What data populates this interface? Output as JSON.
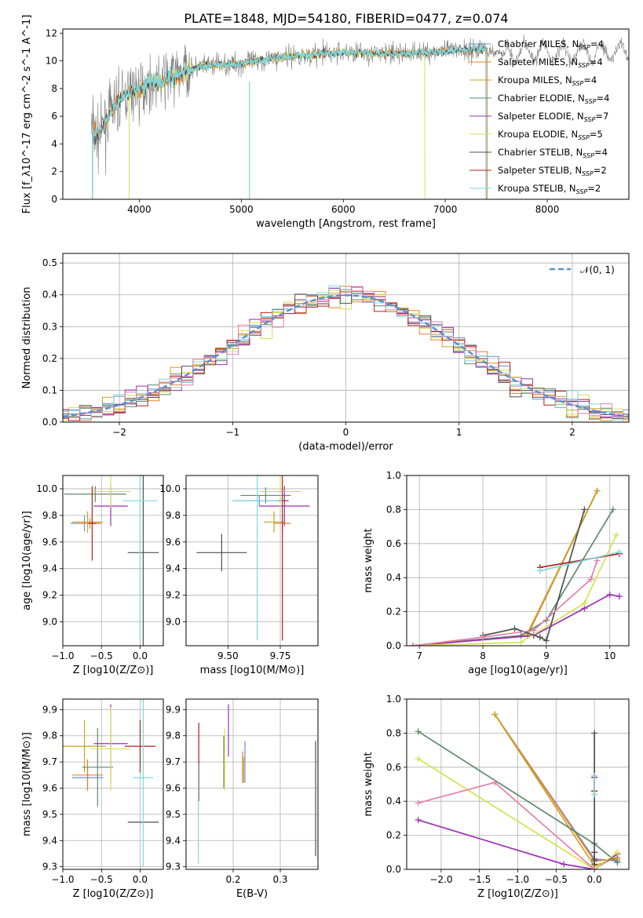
{
  "figure_title": "PLATE=1848, MJD=54180, FIBERID=0477, z=0.074",
  "colors": {
    "Chabrier MILES": "#6b8fd6",
    "Salpeter MILES": "#e8812b",
    "Kroupa MILES": "#c9a227",
    "Chabrier ELODIE": "#5f8a6a",
    "Salpeter ELODIE": "#9b30b5",
    "Kroupa ELODIE": "#d6e24f",
    "Chabrier STELIB": "#4f4f4f",
    "Salpeter STELIB": "#b32020",
    "Kroupa STELIB": "#7fd8dc",
    "data": "#7f7f7f",
    "gaussian": "#5b8fd4"
  },
  "chart_data": [
    {
      "id": "spectrum",
      "type": "line",
      "title": "PLATE=1848, MJD=54180, FIBERID=0477, z=0.074",
      "xlabel": "wavelength [Angstrom, rest frame]",
      "ylabel": "Flux [f_λ10^-17 erg cm^-2 s^-1 A^-1]",
      "xlim": [
        3250,
        8800
      ],
      "ylim": [
        0,
        12.3
      ],
      "xticks": [
        "4000",
        "5000",
        "6000",
        "7000",
        "8000"
      ],
      "yticks": [
        "0",
        "2",
        "4",
        "6",
        "8",
        "10",
        "12"
      ],
      "legend": [
        "Chabrier MILES, N_SSP=4",
        "Salpeter MILES, N_SSP=4",
        "Kroupa MILES, N_SSP=4",
        "Chabrier ELODIE, N_SSP=4",
        "Salpeter ELODIE, N_SSP=7",
        "Kroupa ELODIE, N_SSP=5",
        "Chabrier STELIB, N_SSP=4",
        "Salpeter STELIB, N_SSP=2",
        "Kroupa STELIB, N_SSP=2"
      ],
      "legend_loc": "lower right",
      "continuum": {
        "x": [
          3530,
          3600,
          3700,
          3800,
          3900,
          4000,
          4100,
          4200,
          4300,
          4400,
          4500,
          4700,
          5000,
          5300,
          5600,
          6000,
          6500,
          7000,
          7400
        ],
        "y": [
          5.2,
          4.5,
          6.0,
          7.2,
          7.7,
          7.9,
          8.4,
          8.5,
          8.8,
          9.1,
          9.4,
          9.7,
          9.8,
          10.2,
          10.4,
          10.6,
          10.5,
          10.7,
          10.9
        ]
      }
    },
    {
      "id": "residuals",
      "type": "line",
      "xlabel": "(data-model)/error",
      "ylabel": "Normed distribution",
      "xlim": [
        -2.5,
        2.5
      ],
      "ylim": [
        0,
        0.53
      ],
      "xticks": [
        "−2",
        "−1",
        "0",
        "1",
        "2"
      ],
      "yticks": [
        "0.0",
        "0.1",
        "0.2",
        "0.3",
        "0.4",
        "0.5"
      ],
      "legend": [
        "𝒩(0, 1)"
      ],
      "legend_loc": "upper right",
      "bin_width": 0.1
    },
    {
      "id": "age_vs_z",
      "type": "scatter",
      "xlabel": "Z [log10(Z/Z⊙)]",
      "ylabel": "age  [log10(age/yr)]",
      "xlim": [
        -1.0,
        0.3
      ],
      "ylim": [
        8.82,
        10.1
      ],
      "xticks": [
        "−1.0",
        "−0.5",
        "0.0"
      ],
      "yticks": [
        "9.0",
        "9.2",
        "9.4",
        "9.6",
        "9.8",
        "10.0"
      ],
      "points": [
        {
          "model": "Chabrier MILES",
          "x": -0.72,
          "y": 9.74,
          "xerr": 0.18,
          "yerr": 0.06
        },
        {
          "model": "Salpeter MILES",
          "x": -0.65,
          "y": 9.74,
          "xerr": 0.15,
          "yerr": 0.04
        },
        {
          "model": "Kroupa MILES",
          "x": -0.68,
          "y": 9.75,
          "xerr": 0.2,
          "yerr": 0.08
        },
        {
          "model": "Chabrier ELODIE",
          "x": -0.58,
          "y": 9.96,
          "xerr": 0.4,
          "yerr": 0.06
        },
        {
          "model": "Salpeter ELODIE",
          "x": -0.38,
          "y": 9.87,
          "xerr": 0.22,
          "yerr": 0.15
        },
        {
          "model": "Kroupa ELODIE",
          "x": -0.38,
          "y": 9.98,
          "xerr": 0.25,
          "yerr": 0.12
        },
        {
          "model": "Chabrier STELIB",
          "x": 0.04,
          "y": 9.52,
          "xerr": 0.2,
          "yerr": 0.7
        },
        {
          "model": "Salpeter STELIB",
          "x": -0.62,
          "y": 9.74,
          "xerr": 0.05,
          "yerr": 0.28
        },
        {
          "model": "Kroupa STELIB",
          "x": 0.0,
          "y": 9.91,
          "xerr": 0.22,
          "yerr": 1.05
        }
      ]
    },
    {
      "id": "age_vs_mass",
      "type": "scatter",
      "xlabel": "mass [log10(M/M⊙)]",
      "ylabel": "",
      "xlim": [
        9.3,
        9.93
      ],
      "ylim": [
        8.82,
        10.1
      ],
      "xticks": [
        "9.50",
        "9.75"
      ],
      "yticks": [
        "9.0",
        "9.2",
        "9.4",
        "9.6",
        "9.8",
        "10.0"
      ],
      "points": [
        {
          "model": "Chabrier MILES",
          "x": 9.65,
          "y": 9.91,
          "xerr": 0.12,
          "yerr": 0.04
        },
        {
          "model": "Salpeter MILES",
          "x": 9.76,
          "y": 9.74,
          "xerr": 0.04,
          "yerr": 0.06
        },
        {
          "model": "Kroupa MILES",
          "x": 9.72,
          "y": 9.75,
          "xerr": 0.05,
          "yerr": 0.08
        },
        {
          "model": "Chabrier ELODIE",
          "x": 9.68,
          "y": 9.95,
          "xerr": 0.12,
          "yerr": 0.06
        },
        {
          "model": "Salpeter ELODIE",
          "x": 9.77,
          "y": 9.87,
          "xerr": 0.12,
          "yerr": 0.15
        },
        {
          "model": "Kroupa ELODIE",
          "x": 9.75,
          "y": 9.98,
          "xerr": 0.1,
          "yerr": 0.12
        },
        {
          "model": "Chabrier STELIB",
          "x": 9.47,
          "y": 9.52,
          "xerr": 0.12,
          "yerr": 0.14
        },
        {
          "model": "Salpeter STELIB",
          "x": 9.76,
          "y": 9.91,
          "xerr": 0.03,
          "yerr": 1.05
        },
        {
          "model": "Kroupa STELIB",
          "x": 9.64,
          "y": 9.91,
          "xerr": 0.12,
          "yerr": 1.05
        }
      ]
    },
    {
      "id": "weight_vs_age",
      "type": "line",
      "xlabel": "age  [log10(age/yr)]",
      "ylabel": "mass weight",
      "xlim": [
        6.8,
        10.3
      ],
      "ylim": [
        0,
        1.0
      ],
      "xticks": [
        "7",
        "8",
        "9",
        "10"
      ],
      "yticks": [
        "0.0",
        "0.2",
        "0.4",
        "0.6",
        "0.8",
        "1.0"
      ],
      "series": [
        {
          "model": "Chabrier MILES",
          "x": [
            8.7,
            9.8
          ],
          "y": [
            0.06,
            0.91
          ]
        },
        {
          "model": "Salpeter MILES",
          "x": [
            8.7,
            9.8
          ],
          "y": [
            0.06,
            0.91
          ]
        },
        {
          "model": "Kroupa MILES",
          "x": [
            8.7,
            9.8
          ],
          "y": [
            0.07,
            0.91
          ]
        },
        {
          "model": "Chabrier ELODIE",
          "x": [
            6.9,
            8.6,
            9.0,
            10.05
          ],
          "y": [
            0.0,
            0.06,
            0.15,
            0.8
          ]
        },
        {
          "model": "Salpeter ELODIE",
          "x": [
            6.9,
            8.8,
            9.6,
            10.0,
            10.15
          ],
          "y": [
            0.0,
            0.06,
            0.22,
            0.3,
            0.29
          ]
        },
        {
          "model": "Kroupa ELODIE",
          "x": [
            6.9,
            8.6,
            9.6,
            10.1
          ],
          "y": [
            0.0,
            0.02,
            0.25,
            0.65
          ]
        },
        {
          "model": "Chabrier STELIB",
          "x": [
            8.0,
            8.5,
            8.9,
            9.0,
            9.6
          ],
          "y": [
            0.06,
            0.1,
            0.05,
            0.03,
            0.8
          ]
        },
        {
          "model": "Salpeter STELIB",
          "x": [
            8.9,
            10.15
          ],
          "y": [
            0.46,
            0.54
          ]
        },
        {
          "model": "Kroupa STELIB",
          "x": [
            8.9,
            10.15
          ],
          "y": [
            0.44,
            0.55
          ]
        },
        {
          "model": "Salpeter ELODIE pink",
          "x": [
            6.9,
            8.0,
            8.8,
            9.7,
            9.8
          ],
          "y": [
            0.0,
            0.05,
            0.09,
            0.39,
            0.5
          ]
        }
      ]
    },
    {
      "id": "mass_vs_z",
      "type": "scatter",
      "xlabel": "Z [log10(Z/Z⊙)]",
      "ylabel": "mass [log10(M/M⊙)]",
      "xlim": [
        -1.0,
        0.3
      ],
      "ylim": [
        9.29,
        9.94
      ],
      "xticks": [
        "−1.0",
        "−0.5",
        "0.0"
      ],
      "yticks": [
        "9.3",
        "9.4",
        "9.5",
        "9.6",
        "9.7",
        "9.8",
        "9.9"
      ],
      "points": [
        {
          "model": "Chabrier MILES",
          "x": -0.68,
          "y": 9.64,
          "xerr": 0.2,
          "yerr": 0.04
        },
        {
          "model": "Salpeter MILES",
          "x": -0.68,
          "y": 9.65,
          "xerr": 0.2,
          "yerr": 0.06
        },
        {
          "model": "Kroupa MILES",
          "x": -0.72,
          "y": 9.76,
          "xerr": 0.28,
          "yerr": 0.1
        },
        {
          "model": "Chabrier ELODIE",
          "x": -0.55,
          "y": 9.68,
          "xerr": 0.2,
          "yerr": 0.15
        },
        {
          "model": "Salpeter ELODIE",
          "x": -0.38,
          "y": 9.77,
          "xerr": 0.22,
          "yerr": 0.15
        },
        {
          "model": "Kroupa ELODIE",
          "x": -0.38,
          "y": 9.75,
          "xerr": 0.25,
          "yerr": 0.16
        },
        {
          "model": "Chabrier STELIB",
          "x": 0.04,
          "y": 9.47,
          "xerr": 0.2,
          "yerr": 0.0
        },
        {
          "model": "Salpeter STELIB",
          "x": 0.0,
          "y": 9.76,
          "xerr": 0.2,
          "yerr": 0.1
        },
        {
          "model": "Kroupa STELIB",
          "x": 0.04,
          "y": 9.64,
          "xerr": 0.13,
          "yerr": 0.34
        }
      ]
    },
    {
      "id": "mass_vs_ebv",
      "type": "scatter",
      "xlabel": "E(B-V)",
      "ylabel": "",
      "xlim": [
        0.1,
        0.38
      ],
      "ylim": [
        9.29,
        9.94
      ],
      "xticks": [
        "0.2",
        "0.3"
      ],
      "yticks": [
        "9.3",
        "9.4",
        "9.5",
        "9.6",
        "9.7",
        "9.8",
        "9.9"
      ],
      "points": [
        {
          "model": "Chabrier MILES",
          "x": 0.225,
          "y": 9.7,
          "yerr": 0.08
        },
        {
          "model": "Salpeter MILES",
          "x": 0.22,
          "y": 9.68,
          "yerr": 0.06
        },
        {
          "model": "Kroupa MILES",
          "x": 0.222,
          "y": 9.67,
          "yerr": 0.05
        },
        {
          "model": "Chabrier ELODIE",
          "x": 0.18,
          "y": 9.7,
          "yerr": 0.1
        },
        {
          "model": "Salpeter ELODIE",
          "x": 0.19,
          "y": 9.82,
          "yerr": 0.1
        },
        {
          "model": "Kroupa ELODIE",
          "x": 0.182,
          "y": 9.71,
          "yerr": 0.12
        },
        {
          "model": "Chabrier STELIB",
          "x": 0.375,
          "y": 9.56,
          "yerr": 0.22
        },
        {
          "model": "Salpeter STELIB",
          "x": 0.127,
          "y": 9.7,
          "yerr": 0.15
        },
        {
          "model": "Kroupa STELIB",
          "x": 0.126,
          "y": 9.5,
          "yerr": 0.19
        }
      ]
    },
    {
      "id": "weight_vs_z",
      "type": "line",
      "xlabel": "Z [log10(Z/Z⊙)]",
      "ylabel": "mass weight",
      "xlim": [
        -2.45,
        0.45
      ],
      "ylim": [
        0,
        1.0
      ],
      "xticks": [
        "−2.0",
        "−1.5",
        "−1.0",
        "−0.5",
        "0.0"
      ],
      "yticks": [
        "0.0",
        "0.2",
        "0.4",
        "0.6",
        "0.8",
        "1.0"
      ],
      "series": [
        {
          "model": "Chabrier MILES",
          "x": [
            -1.3,
            0.0,
            0.3
          ],
          "y": [
            0.91,
            0.06,
            0.05
          ]
        },
        {
          "model": "Salpeter MILES",
          "x": [
            -1.3,
            0.0,
            0.3
          ],
          "y": [
            0.91,
            0.05,
            0.06
          ]
        },
        {
          "model": "Kroupa MILES",
          "x": [
            -1.3,
            0.0,
            0.3
          ],
          "y": [
            0.91,
            0.02,
            0.07
          ]
        },
        {
          "model": "Chabrier ELODIE",
          "x": [
            -2.3,
            0.0,
            0.3
          ],
          "y": [
            0.81,
            0.15,
            0.04
          ]
        },
        {
          "model": "Salpeter ELODIE",
          "x": [
            -2.3,
            -0.4,
            0.0,
            0.3
          ],
          "y": [
            0.29,
            0.03,
            0.0,
            0.09
          ]
        },
        {
          "model": "Kroupa ELODIE",
          "x": [
            -2.3,
            0.0,
            0.3
          ],
          "y": [
            0.65,
            0.0,
            0.1
          ]
        },
        {
          "model": "Chabrier STELIB",
          "x": [
            0.0,
            0.0,
            0.0,
            0.0,
            0.0
          ],
          "y": [
            0.8,
            0.06,
            0.1,
            0.03,
            0.05
          ]
        },
        {
          "model": "Salpeter STELIB",
          "x": [
            0.0,
            0.0
          ],
          "y": [
            0.46,
            0.54
          ]
        },
        {
          "model": "Kroupa STELIB",
          "x": [
            0.0,
            0.0
          ],
          "y": [
            0.44,
            0.55
          ]
        },
        {
          "model": "Salpeter ELODIE pink",
          "x": [
            -2.3,
            -1.3,
            0.0
          ],
          "y": [
            0.39,
            0.51,
            0.0
          ]
        }
      ]
    }
  ]
}
